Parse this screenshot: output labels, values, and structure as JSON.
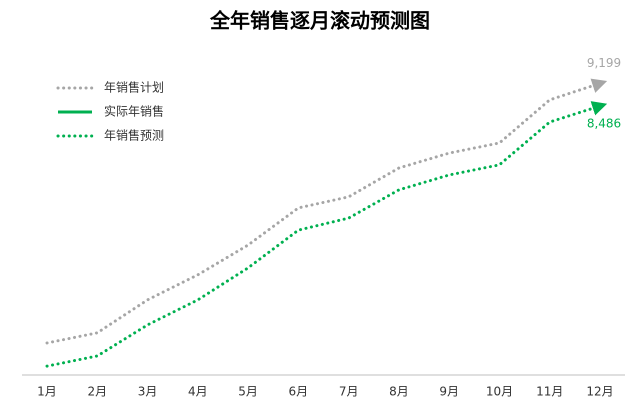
{
  "chart_data": {
    "type": "line",
    "title": "全年销售逐月滚动预测图",
    "categories": [
      "1月",
      "2月",
      "3月",
      "4月",
      "5月",
      "6月",
      "7月",
      "8月",
      "9月",
      "10月",
      "11月",
      "12月"
    ],
    "series": [
      {
        "name": "年销售计划",
        "color": "#a6a6a6",
        "style": "dotted",
        "values": [
          1010,
          1330,
          2370,
          3160,
          4100,
          5270,
          5620,
          6530,
          7000,
          7320,
          8680,
          9199
        ],
        "value_labels": [
          null,
          null,
          null,
          null,
          null,
          null,
          null,
          null,
          null,
          null,
          null,
          "9,199"
        ]
      },
      {
        "name": "实际年销售",
        "color": "#00b050",
        "style": "solid",
        "values": [
          null,
          null,
          null,
          null,
          null,
          null,
          null,
          null,
          null,
          null,
          null,
          null
        ]
      },
      {
        "name": "年销售预测",
        "color": "#00b050",
        "style": "dotted",
        "values": [
          280,
          600,
          1580,
          2370,
          3380,
          4570,
          4950,
          5840,
          6310,
          6630,
          7980,
          8486
        ],
        "value_labels": [
          null,
          null,
          null,
          null,
          null,
          null,
          null,
          null,
          null,
          null,
          null,
          "8,486"
        ]
      }
    ],
    "ylim": [
      0,
      10000
    ],
    "legend": "upper left"
  }
}
